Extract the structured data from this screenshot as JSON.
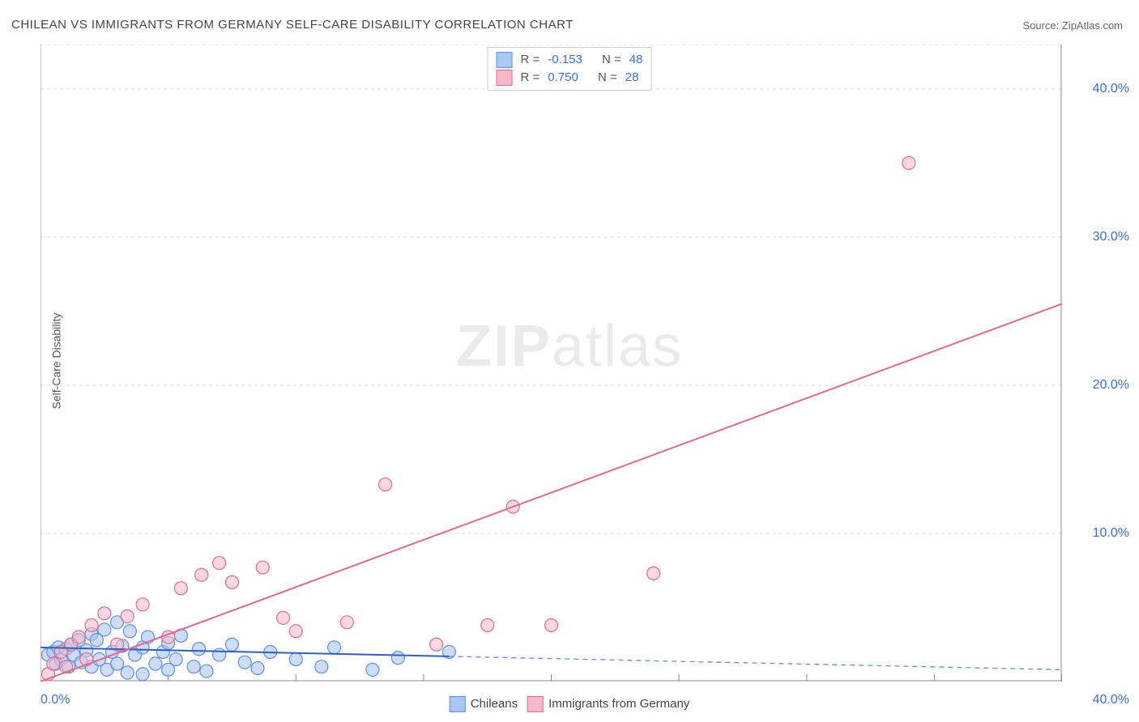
{
  "title": "CHILEAN VS IMMIGRANTS FROM GERMANY SELF-CARE DISABILITY CORRELATION CHART",
  "source": "Source: ZipAtlas.com",
  "y_axis_label": "Self-Care Disability",
  "watermark": {
    "bold": "ZIP",
    "rest": "atlas"
  },
  "chart": {
    "type": "scatter",
    "xlim": [
      0,
      40
    ],
    "ylim": [
      0,
      43
    ],
    "x_ticks": [
      0,
      5,
      10,
      15,
      20,
      25,
      30,
      35,
      40
    ],
    "x_tick_labels": {
      "min": "0.0%",
      "max": "40.0%"
    },
    "y_tick_values": [
      10,
      20,
      30,
      40
    ],
    "y_tick_labels": [
      "10.0%",
      "20.0%",
      "30.0%",
      "40.0%"
    ],
    "grid_color": "#d8d8d8",
    "grid_dash": "4 4",
    "axis_color": "#888888",
    "background_color": "#ffffff",
    "marker_radius": 8,
    "marker_stroke_width": 1.2,
    "series": [
      {
        "name": "Chileans",
        "legend_label": "Chileans",
        "fill": "#a9c6f5",
        "stroke": "#5f8fe0",
        "fill_opacity": 0.6,
        "points": [
          [
            0.3,
            1.8
          ],
          [
            0.5,
            2.0
          ],
          [
            0.6,
            1.2
          ],
          [
            0.7,
            2.3
          ],
          [
            0.8,
            1.5
          ],
          [
            1.0,
            2.2
          ],
          [
            1.1,
            1.0
          ],
          [
            1.2,
            2.5
          ],
          [
            1.3,
            1.8
          ],
          [
            1.5,
            2.8
          ],
          [
            1.6,
            1.3
          ],
          [
            1.8,
            2.1
          ],
          [
            2.0,
            3.2
          ],
          [
            2.0,
            1.0
          ],
          [
            2.2,
            2.8
          ],
          [
            2.3,
            1.5
          ],
          [
            2.5,
            3.5
          ],
          [
            2.6,
            0.8
          ],
          [
            2.8,
            2.0
          ],
          [
            3.0,
            4.0
          ],
          [
            3.0,
            1.2
          ],
          [
            3.2,
            2.4
          ],
          [
            3.4,
            0.6
          ],
          [
            3.5,
            3.4
          ],
          [
            3.7,
            1.8
          ],
          [
            4.0,
            2.3
          ],
          [
            4.0,
            0.5
          ],
          [
            4.2,
            3.0
          ],
          [
            4.5,
            1.2
          ],
          [
            4.8,
            2.0
          ],
          [
            5.0,
            0.8
          ],
          [
            5.0,
            2.6
          ],
          [
            5.3,
            1.5
          ],
          [
            5.5,
            3.1
          ],
          [
            6.0,
            1.0
          ],
          [
            6.2,
            2.2
          ],
          [
            6.5,
            0.7
          ],
          [
            7.0,
            1.8
          ],
          [
            7.5,
            2.5
          ],
          [
            8.0,
            1.3
          ],
          [
            8.5,
            0.9
          ],
          [
            9.0,
            2.0
          ],
          [
            10.0,
            1.5
          ],
          [
            11.0,
            1.0
          ],
          [
            11.5,
            2.3
          ],
          [
            13.0,
            0.8
          ],
          [
            14.0,
            1.6
          ],
          [
            16.0,
            2.0
          ]
        ],
        "regression": {
          "x1": 0,
          "y1": 2.3,
          "x2": 16,
          "y2": 1.7,
          "color": "#2e5fc9",
          "width": 2
        },
        "regression_ext": {
          "x1": 16,
          "y1": 1.7,
          "x2": 40,
          "y2": 0.8,
          "color": "#5f8fe0",
          "dash": "6 5",
          "width": 1.3
        }
      },
      {
        "name": "Immigrants from Germany",
        "legend_label": "Immigrants from Germany",
        "fill": "#f7b8c9",
        "stroke": "#e26a8d",
        "fill_opacity": 0.55,
        "points": [
          [
            0.3,
            0.5
          ],
          [
            0.5,
            1.2
          ],
          [
            0.8,
            2.0
          ],
          [
            1.0,
            1.0
          ],
          [
            1.2,
            2.5
          ],
          [
            1.5,
            3.0
          ],
          [
            1.8,
            1.5
          ],
          [
            2.0,
            3.8
          ],
          [
            2.5,
            4.6
          ],
          [
            3.0,
            2.5
          ],
          [
            3.4,
            4.4
          ],
          [
            4.0,
            5.2
          ],
          [
            5.0,
            3.0
          ],
          [
            5.5,
            6.3
          ],
          [
            6.3,
            7.2
          ],
          [
            7.0,
            8.0
          ],
          [
            7.5,
            6.7
          ],
          [
            8.7,
            7.7
          ],
          [
            9.5,
            4.3
          ],
          [
            10.0,
            3.4
          ],
          [
            12.0,
            4.0
          ],
          [
            13.5,
            13.3
          ],
          [
            15.5,
            2.5
          ],
          [
            17.5,
            3.8
          ],
          [
            18.5,
            11.8
          ],
          [
            20.0,
            3.8
          ],
          [
            24.0,
            7.3
          ],
          [
            34.0,
            35.0
          ]
        ],
        "regression": {
          "x1": 0,
          "y1": 0,
          "x2": 40,
          "y2": 25.5,
          "color": "#e26a8d",
          "width": 2
        }
      }
    ]
  },
  "legend_stats": {
    "rows": [
      {
        "swatch_fill": "#a9c6f5",
        "swatch_stroke": "#5f8fe0",
        "r_label": "R =",
        "r_value": "-0.153",
        "n_label": "N =",
        "n_value": "48"
      },
      {
        "swatch_fill": "#f7b8c9",
        "swatch_stroke": "#e26a8d",
        "r_label": "R =",
        "r_value": "0.750",
        "n_label": "N =",
        "n_value": "28"
      }
    ]
  },
  "legend_bottom": {
    "items": [
      {
        "fill": "#a9c6f5",
        "stroke": "#5f8fe0",
        "label": "Chileans"
      },
      {
        "fill": "#f7b8c9",
        "stroke": "#e26a8d",
        "label": "Immigrants from Germany"
      }
    ]
  }
}
